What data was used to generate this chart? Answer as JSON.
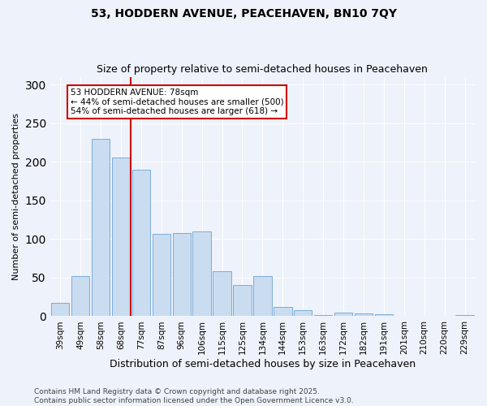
{
  "title": "53, HODDERN AVENUE, PEACEHAVEN, BN10 7QY",
  "subtitle": "Size of property relative to semi-detached houses in Peacehaven",
  "xlabel": "Distribution of semi-detached houses by size in Peacehaven",
  "ylabel": "Number of semi-detached properties",
  "categories": [
    "39sqm",
    "49sqm",
    "58sqm",
    "68sqm",
    "77sqm",
    "87sqm",
    "96sqm",
    "106sqm",
    "115sqm",
    "125sqm",
    "134sqm",
    "144sqm",
    "153sqm",
    "163sqm",
    "172sqm",
    "182sqm",
    "191sqm",
    "201sqm",
    "210sqm",
    "220sqm",
    "229sqm"
  ],
  "values": [
    17,
    52,
    230,
    205,
    190,
    107,
    108,
    110,
    58,
    40,
    52,
    12,
    8,
    2,
    5,
    4,
    3,
    1,
    0,
    1,
    2
  ],
  "bar_color": "#c9dcf0",
  "bar_edge_color": "#7aadda",
  "vline_x": 4,
  "annotation_text": "53 HODDERN AVENUE: 78sqm\n← 44% of semi-detached houses are smaller (500)\n54% of semi-detached houses are larger (618) →",
  "annotation_box_color": "#ffffff",
  "annotation_box_edge_color": "#cc0000",
  "vline_color": "#cc0000",
  "footnote": "Contains HM Land Registry data © Crown copyright and database right 2025.\nContains public sector information licensed under the Open Government Licence v3.0.",
  "ylim": [
    0,
    310
  ],
  "background_color": "#eef2fa",
  "grid_color": "#ffffff",
  "title_fontsize": 10,
  "subtitle_fontsize": 9,
  "ylabel_fontsize": 8,
  "xlabel_fontsize": 9,
  "tick_fontsize": 7.5,
  "footnote_fontsize": 6.5
}
